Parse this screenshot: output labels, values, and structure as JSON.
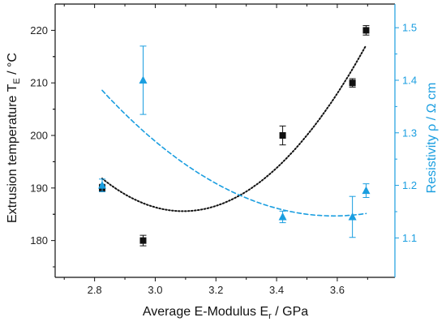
{
  "chart_data": {
    "type": "scatter",
    "xlabel": "Average E-Modulus E",
    "xlabel_sub": "r",
    "xlabel_tail": " / GPa",
    "ylabel": "Extrusion temperature T",
    "ylabel_sub": "E",
    "ylabel_tail": " / °C",
    "y2label": "Resistivity ρ / Ω cm",
    "xlim": [
      2.67,
      3.79
    ],
    "ylim": [
      173,
      225
    ],
    "y2lim": [
      1.025,
      1.545
    ],
    "x_ticks": [
      "2.8",
      "3.0",
      "3.2",
      "3.4",
      "3.6"
    ],
    "y_ticks": [
      "180",
      "190",
      "200",
      "210",
      "220"
    ],
    "y2_ticks": [
      "1.1",
      "1.2",
      "1.3",
      "1.4",
      "1.5"
    ],
    "grid": false,
    "legend": "none",
    "series": [
      {
        "axis": "left",
        "marker": "square",
        "color": "#111111",
        "points": [
          {
            "x": 2.825,
            "y": 190,
            "err": 0.7
          },
          {
            "x": 2.96,
            "y": 180,
            "err": 1.0
          },
          {
            "x": 3.42,
            "y": 200,
            "err": 1.8
          },
          {
            "x": 3.65,
            "y": 210,
            "err": 0.8
          },
          {
            "x": 3.695,
            "y": 220,
            "err": 0.9
          }
        ],
        "fit": {
          "style": "dotted",
          "color": "#111111",
          "x_range": [
            2.825,
            3.695
          ],
          "coeffs": [
            1017.3,
            -537.9,
            86.97
          ]
        }
      },
      {
        "axis": "right",
        "marker": "triangle",
        "color": "#1a9ee0",
        "points": [
          {
            "x": 2.825,
            "y": 1.2,
            "err": 0.012
          },
          {
            "x": 2.96,
            "y": 1.4,
            "err": 0.065
          },
          {
            "x": 3.42,
            "y": 1.14,
            "err": 0.011
          },
          {
            "x": 3.65,
            "y": 1.14,
            "err": 0.039
          },
          {
            "x": 3.695,
            "y": 1.19,
            "err": 0.013
          }
        ],
        "fit": {
          "style": "dashed",
          "color": "#1a9ee0",
          "x_range": [
            2.825,
            3.695
          ],
          "coeffs": [
            6.418,
            -2.9405,
            0.4097
          ]
        }
      }
    ]
  }
}
